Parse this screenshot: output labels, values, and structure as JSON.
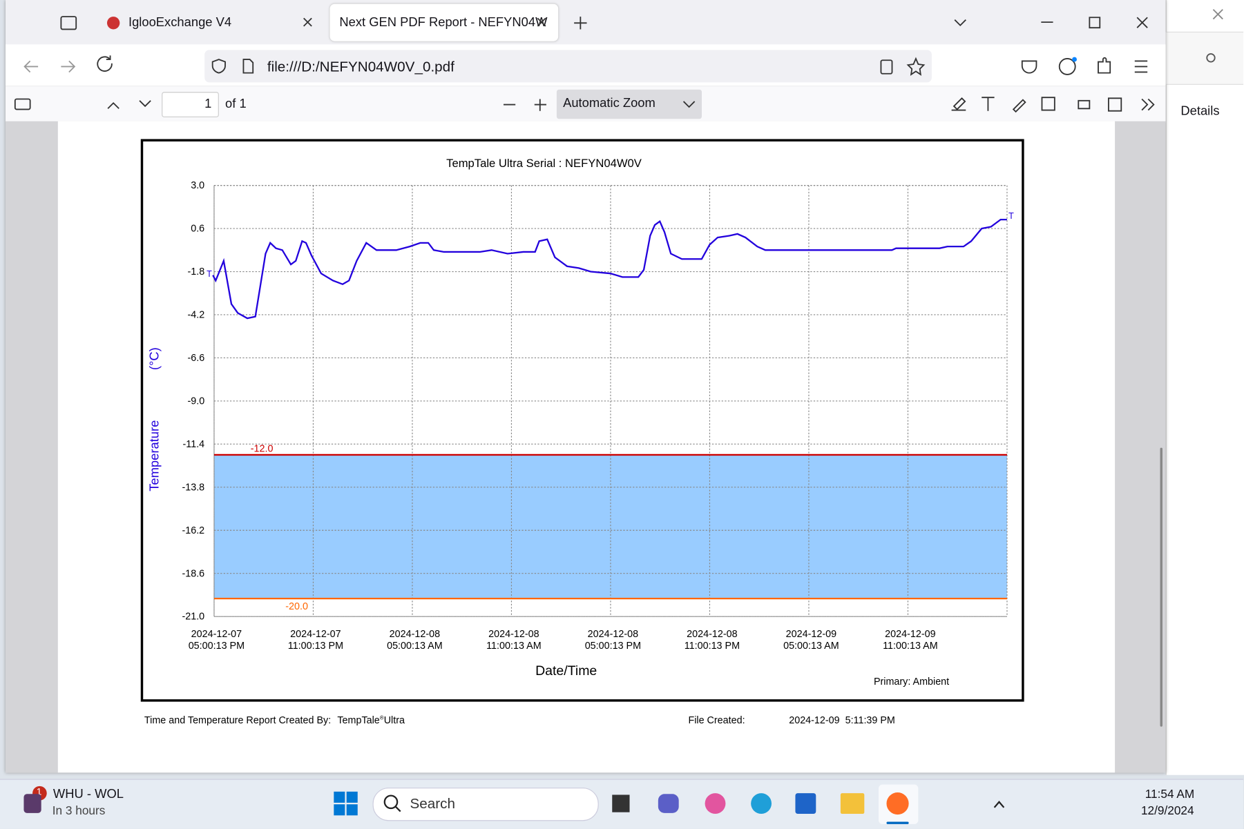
{
  "browser": {
    "tabs": [
      "IglooExchange V4",
      "Next GEN PDF Report - NEFYN04W"
    ],
    "url": "file:///D:/NEFYN04W0V_0.pdf",
    "page_number": 1,
    "page_count": "of 1",
    "zoom": "Automatic Zoom",
    "side_panel": "Details"
  },
  "chart_data": {
    "type": "line",
    "title": "TempTale Ultra  Serial : NEFYN04W0V",
    "x_label": "Date/Time",
    "y_label": "Temperature",
    "y_unit": "(°C)",
    "note": "Primary: Ambient",
    "marker_label": "T",
    "color": "#2200dd",
    "band_color": "#99ccff",
    "grid": true,
    "x": [
      "2024-12-07T16:56:00",
      "2024-12-07T17:06:00",
      "2024-12-07T17:35:00",
      "2024-12-07T18:03:00",
      "2024-12-07T18:26:00",
      "2024-12-07T19:01:00",
      "2024-12-07T19:30:00",
      "2024-12-07T20:07:00",
      "2024-12-07T20:24:00",
      "2024-12-07T20:45:00",
      "2024-12-07T21:08:00",
      "2024-12-07T21:39:00",
      "2024-12-07T21:57:00",
      "2024-12-07T22:20:00",
      "2024-12-07T22:34:00",
      "2024-12-07T22:54:00",
      "2024-12-07T23:29:00",
      "2024-12-08T00:12:00",
      "2024-12-08T00:47:00",
      "2024-12-08T01:10:00",
      "2024-12-08T01:38:00",
      "2024-12-08T02:13:00",
      "2024-12-08T02:50:00",
      "2024-12-08T04:02:00",
      "2024-12-08T04:51:00",
      "2024-12-08T05:29:00",
      "2024-12-08T05:58:00",
      "2024-12-08T06:18:00",
      "2024-12-08T06:55:00",
      "2024-12-08T09:05:00",
      "2024-12-08T09:48:00",
      "2024-12-08T10:46:00",
      "2024-12-08T11:43:00",
      "2024-12-08T12:26:00",
      "2024-12-08T12:41:00",
      "2024-12-08T13:10:00",
      "2024-12-08T13:38:00",
      "2024-12-08T14:22:00",
      "2024-12-08T15:05:00",
      "2024-12-08T15:48:00",
      "2024-12-08T17:00:00",
      "2024-12-08T17:43:00",
      "2024-12-08T18:41:00",
      "2024-12-08T19:01:00",
      "2024-12-08T19:24:00",
      "2024-12-08T19:41:00",
      "2024-12-08T19:59:00",
      "2024-12-08T20:16:00",
      "2024-12-08T20:39:00",
      "2024-12-08T21:19:00",
      "2024-12-08T22:31:00",
      "2024-12-08T23:00:00",
      "2024-12-08T23:29:00",
      "2024-12-09T00:12:00",
      "2024-12-09T00:41:00",
      "2024-12-09T01:10:00",
      "2024-12-09T01:53:00",
      "2024-12-09T02:22:00",
      "2024-12-09T10:02:00",
      "2024-12-09T10:17:00",
      "2024-12-09T10:46:00",
      "2024-12-09T12:55:00",
      "2024-12-09T13:24:00",
      "2024-12-09T14:22:00",
      "2024-12-09T14:50:00",
      "2024-12-09T15:28:00",
      "2024-12-09T16:02:00",
      "2024-12-09T16:37:00",
      "2024-12-09T17:00:00"
    ],
    "values": [
      -2.0,
      -2.3,
      -1.2,
      -3.6,
      -4.1,
      -4.4,
      -4.3,
      -0.8,
      -0.2,
      -0.5,
      -0.6,
      -1.4,
      -1.2,
      -0.1,
      -0.2,
      -0.9,
      -1.9,
      -2.3,
      -2.5,
      -2.3,
      -1.2,
      -0.2,
      -0.6,
      -0.6,
      -0.4,
      -0.2,
      -0.2,
      -0.6,
      -0.7,
      -0.7,
      -0.6,
      -0.8,
      -0.7,
      -0.7,
      -0.1,
      0.0,
      -1.0,
      -1.5,
      -1.6,
      -1.8,
      -1.9,
      -2.1,
      -2.1,
      -1.7,
      0.2,
      0.8,
      1.0,
      0.4,
      -0.8,
      -1.1,
      -1.1,
      -0.3,
      0.1,
      0.2,
      0.3,
      0.1,
      -0.4,
      -0.6,
      -0.6,
      -0.5,
      -0.5,
      -0.5,
      -0.4,
      -0.4,
      -0.1,
      0.6,
      0.7,
      1.1,
      1.1
    ],
    "xlim": [
      "2024-12-07T17:00:13",
      "2024-12-09T17:00:13"
    ],
    "xticks": [
      {
        "value": "2024-12-07T17:00:13",
        "label": "2024-12-07\n05:00:13 PM"
      },
      {
        "value": "2024-12-07T23:00:13",
        "label": "2024-12-07\n11:00:13 PM"
      },
      {
        "value": "2024-12-08T05:00:13",
        "label": "2024-12-08\n05:00:13 AM"
      },
      {
        "value": "2024-12-08T11:00:13",
        "label": "2024-12-08\n11:00:13 AM"
      },
      {
        "value": "2024-12-08T17:00:13",
        "label": "2024-12-08\n05:00:13 PM"
      },
      {
        "value": "2024-12-08T23:00:13",
        "label": "2024-12-08\n11:00:13 PM"
      },
      {
        "value": "2024-12-09T05:00:13",
        "label": "2024-12-09\n05:00:13 AM"
      },
      {
        "value": "2024-12-09T11:00:13",
        "label": "2024-12-09\n11:00:13 AM"
      }
    ],
    "ylim": [
      -21,
      3
    ],
    "yticks": [
      {
        "value": 3,
        "label": "3.0"
      },
      0.6,
      -1.8,
      -4.2,
      -6.6,
      {
        "value": -9,
        "label": "-9.0"
      },
      -11.4,
      -13.8,
      -16.2,
      -18.6,
      {
        "value": -21,
        "label": "-21.0"
      }
    ],
    "thresholds": [
      {
        "value": -12,
        "label": "-12.0",
        "color": "#cc0000"
      },
      {
        "value": -20,
        "label": "-20.0",
        "color": "#ff6600"
      }
    ]
  },
  "report_footer": {
    "created_by": "Time and Temperature Report Created By:",
    "product": "TempTale",
    "product_mark": "®",
    "product_suffix": "Ultra",
    "file_created_label": "File Created:",
    "file_created": "2024-12-09  5:11:39 PM"
  },
  "taskbar": {
    "notification_count": "1",
    "event": "WHU - WOL",
    "event_time": "In 3 hours",
    "search": "Search",
    "time": "11:54 AM",
    "date": "12/9/2024"
  }
}
